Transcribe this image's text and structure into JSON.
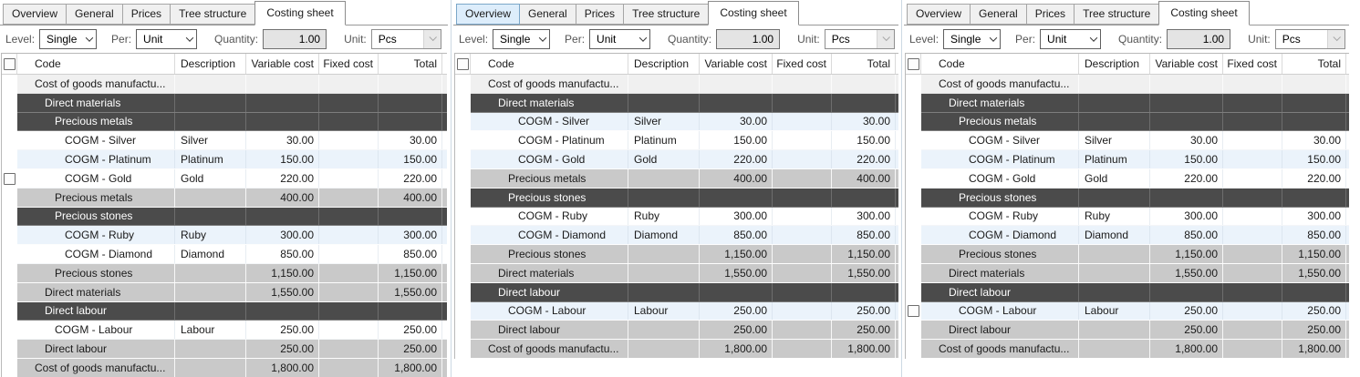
{
  "tabs": [
    "Overview",
    "General",
    "Prices",
    "Tree structure",
    "Costing sheet"
  ],
  "active_tab": "Costing sheet",
  "toolbar": {
    "level_label": "Level:",
    "level_value": "Single",
    "per_label": "Per:",
    "per_value": "Unit",
    "quantity_label": "Quantity:",
    "quantity_value": "1.00",
    "unit_label": "Unit:",
    "unit_value": "Pcs"
  },
  "table": {
    "columns": [
      "Code",
      "Description",
      "Variable cost",
      "Fixed cost",
      "Total"
    ]
  },
  "colors": {
    "group_row_bg": "#4b4b4b",
    "subtotal_row_bg": "#c9c9c9",
    "alt_row_bg": "#ebf3fb",
    "root_row_bg": "#f0f0f0",
    "hover_tab_bg": "#ddedfb"
  },
  "panels": [
    {
      "hover_tab": "",
      "rows": [
        {
          "type": "root",
          "code": "Cost of goods manufactu...",
          "desc": "",
          "variable": "",
          "fixed": "",
          "total": "",
          "indent": 0,
          "alt": false,
          "checkbox": false
        },
        {
          "type": "group",
          "code": "Direct materials",
          "desc": "",
          "variable": "",
          "fixed": "",
          "total": "",
          "indent": 1,
          "alt": false,
          "checkbox": false
        },
        {
          "type": "group",
          "code": "Precious metals",
          "desc": "",
          "variable": "",
          "fixed": "",
          "total": "",
          "indent": 2,
          "alt": false,
          "checkbox": false
        },
        {
          "type": "item",
          "code": "COGM - Silver",
          "desc": "Silver",
          "variable": "30.00",
          "fixed": "",
          "total": "30.00",
          "indent": 3,
          "alt": false,
          "checkbox": false
        },
        {
          "type": "item",
          "code": "COGM - Platinum",
          "desc": "Platinum",
          "variable": "150.00",
          "fixed": "",
          "total": "150.00",
          "indent": 3,
          "alt": true,
          "checkbox": false
        },
        {
          "type": "item",
          "code": "COGM - Gold",
          "desc": "Gold",
          "variable": "220.00",
          "fixed": "",
          "total": "220.00",
          "indent": 3,
          "alt": false,
          "checkbox": true
        },
        {
          "type": "sub",
          "code": "Precious metals",
          "desc": "",
          "variable": "400.00",
          "fixed": "",
          "total": "400.00",
          "indent": 2,
          "alt": false,
          "checkbox": false
        },
        {
          "type": "group",
          "code": "Precious stones",
          "desc": "",
          "variable": "",
          "fixed": "",
          "total": "",
          "indent": 2,
          "alt": false,
          "checkbox": false
        },
        {
          "type": "item",
          "code": "COGM - Ruby",
          "desc": "Ruby",
          "variable": "300.00",
          "fixed": "",
          "total": "300.00",
          "indent": 3,
          "alt": true,
          "checkbox": false
        },
        {
          "type": "item",
          "code": "COGM - Diamond",
          "desc": "Diamond",
          "variable": "850.00",
          "fixed": "",
          "total": "850.00",
          "indent": 3,
          "alt": false,
          "checkbox": false
        },
        {
          "type": "sub",
          "code": "Precious stones",
          "desc": "",
          "variable": "1,150.00",
          "fixed": "",
          "total": "1,150.00",
          "indent": 2,
          "alt": false,
          "checkbox": false
        },
        {
          "type": "sub",
          "code": "Direct materials",
          "desc": "",
          "variable": "1,550.00",
          "fixed": "",
          "total": "1,550.00",
          "indent": 1,
          "alt": false,
          "checkbox": false
        },
        {
          "type": "group",
          "code": "Direct labour",
          "desc": "",
          "variable": "",
          "fixed": "",
          "total": "",
          "indent": 1,
          "alt": false,
          "checkbox": false
        },
        {
          "type": "item",
          "code": "COGM - Labour",
          "desc": "Labour",
          "variable": "250.00",
          "fixed": "",
          "total": "250.00",
          "indent": 2,
          "alt": false,
          "checkbox": false
        },
        {
          "type": "sub",
          "code": "Direct labour",
          "desc": "",
          "variable": "250.00",
          "fixed": "",
          "total": "250.00",
          "indent": 1,
          "alt": false,
          "checkbox": false
        },
        {
          "type": "sub",
          "code": "Cost of goods manufactu...",
          "desc": "",
          "variable": "1,800.00",
          "fixed": "",
          "total": "1,800.00",
          "indent": 0,
          "alt": false,
          "checkbox": false
        }
      ]
    },
    {
      "hover_tab": "Overview",
      "rows": [
        {
          "type": "root",
          "code": "Cost of goods manufactu...",
          "desc": "",
          "variable": "",
          "fixed": "",
          "total": "",
          "indent": 0,
          "alt": false,
          "checkbox": false
        },
        {
          "type": "group",
          "code": "Direct materials",
          "desc": "",
          "variable": "",
          "fixed": "",
          "total": "",
          "indent": 1,
          "alt": false,
          "checkbox": false
        },
        {
          "type": "item",
          "code": "COGM - Silver",
          "desc": "Silver",
          "variable": "30.00",
          "fixed": "",
          "total": "30.00",
          "indent": 3,
          "alt": true,
          "checkbox": false
        },
        {
          "type": "item",
          "code": "COGM - Platinum",
          "desc": "Platinum",
          "variable": "150.00",
          "fixed": "",
          "total": "150.00",
          "indent": 3,
          "alt": false,
          "checkbox": false
        },
        {
          "type": "item",
          "code": "COGM - Gold",
          "desc": "Gold",
          "variable": "220.00",
          "fixed": "",
          "total": "220.00",
          "indent": 3,
          "alt": true,
          "checkbox": false
        },
        {
          "type": "sub",
          "code": "Precious metals",
          "desc": "",
          "variable": "400.00",
          "fixed": "",
          "total": "400.00",
          "indent": 2,
          "alt": false,
          "checkbox": false
        },
        {
          "type": "group",
          "code": "Precious stones",
          "desc": "",
          "variable": "",
          "fixed": "",
          "total": "",
          "indent": 2,
          "alt": false,
          "checkbox": false
        },
        {
          "type": "item",
          "code": "COGM - Ruby",
          "desc": "Ruby",
          "variable": "300.00",
          "fixed": "",
          "total": "300.00",
          "indent": 3,
          "alt": false,
          "checkbox": false
        },
        {
          "type": "item",
          "code": "COGM - Diamond",
          "desc": "Diamond",
          "variable": "850.00",
          "fixed": "",
          "total": "850.00",
          "indent": 3,
          "alt": true,
          "checkbox": false
        },
        {
          "type": "sub",
          "code": "Precious stones",
          "desc": "",
          "variable": "1,150.00",
          "fixed": "",
          "total": "1,150.00",
          "indent": 2,
          "alt": false,
          "checkbox": false
        },
        {
          "type": "sub",
          "code": "Direct materials",
          "desc": "",
          "variable": "1,550.00",
          "fixed": "",
          "total": "1,550.00",
          "indent": 1,
          "alt": false,
          "checkbox": false
        },
        {
          "type": "group",
          "code": "Direct labour",
          "desc": "",
          "variable": "",
          "fixed": "",
          "total": "",
          "indent": 1,
          "alt": false,
          "checkbox": false
        },
        {
          "type": "item",
          "code": "COGM - Labour",
          "desc": "Labour",
          "variable": "250.00",
          "fixed": "",
          "total": "250.00",
          "indent": 2,
          "alt": true,
          "checkbox": false
        },
        {
          "type": "sub",
          "code": "Direct labour",
          "desc": "",
          "variable": "250.00",
          "fixed": "",
          "total": "250.00",
          "indent": 1,
          "alt": false,
          "checkbox": false
        },
        {
          "type": "sub",
          "code": "Cost of goods manufactu...",
          "desc": "",
          "variable": "1,800.00",
          "fixed": "",
          "total": "1,800.00",
          "indent": 0,
          "alt": false,
          "checkbox": false
        }
      ]
    },
    {
      "hover_tab": "",
      "rows": [
        {
          "type": "root",
          "code": "Cost of goods manufactu...",
          "desc": "",
          "variable": "",
          "fixed": "",
          "total": "",
          "indent": 0,
          "alt": false,
          "checkbox": false
        },
        {
          "type": "group",
          "code": "Direct materials",
          "desc": "",
          "variable": "",
          "fixed": "",
          "total": "",
          "indent": 1,
          "alt": false,
          "checkbox": false
        },
        {
          "type": "group",
          "code": "Precious metals",
          "desc": "",
          "variable": "",
          "fixed": "",
          "total": "",
          "indent": 2,
          "alt": false,
          "checkbox": false
        },
        {
          "type": "item",
          "code": "COGM - Silver",
          "desc": "Silver",
          "variable": "30.00",
          "fixed": "",
          "total": "30.00",
          "indent": 3,
          "alt": false,
          "checkbox": false
        },
        {
          "type": "item",
          "code": "COGM - Platinum",
          "desc": "Platinum",
          "variable": "150.00",
          "fixed": "",
          "total": "150.00",
          "indent": 3,
          "alt": true,
          "checkbox": false
        },
        {
          "type": "item",
          "code": "COGM - Gold",
          "desc": "Gold",
          "variable": "220.00",
          "fixed": "",
          "total": "220.00",
          "indent": 3,
          "alt": false,
          "checkbox": false
        },
        {
          "type": "group",
          "code": "Precious stones",
          "desc": "",
          "variable": "",
          "fixed": "",
          "total": "",
          "indent": 2,
          "alt": false,
          "checkbox": false
        },
        {
          "type": "item",
          "code": "COGM - Ruby",
          "desc": "Ruby",
          "variable": "300.00",
          "fixed": "",
          "total": "300.00",
          "indent": 3,
          "alt": false,
          "checkbox": false
        },
        {
          "type": "item",
          "code": "COGM - Diamond",
          "desc": "Diamond",
          "variable": "850.00",
          "fixed": "",
          "total": "850.00",
          "indent": 3,
          "alt": true,
          "checkbox": false
        },
        {
          "type": "sub",
          "code": "Precious stones",
          "desc": "",
          "variable": "1,150.00",
          "fixed": "",
          "total": "1,150.00",
          "indent": 2,
          "alt": false,
          "checkbox": false
        },
        {
          "type": "sub",
          "code": "Direct materials",
          "desc": "",
          "variable": "1,550.00",
          "fixed": "",
          "total": "1,550.00",
          "indent": 1,
          "alt": false,
          "checkbox": false
        },
        {
          "type": "group",
          "code": "Direct labour",
          "desc": "",
          "variable": "",
          "fixed": "",
          "total": "",
          "indent": 1,
          "alt": false,
          "checkbox": false
        },
        {
          "type": "item",
          "code": "COGM - Labour",
          "desc": "Labour",
          "variable": "250.00",
          "fixed": "",
          "total": "250.00",
          "indent": 2,
          "alt": true,
          "checkbox": true
        },
        {
          "type": "sub",
          "code": "Direct labour",
          "desc": "",
          "variable": "250.00",
          "fixed": "",
          "total": "250.00",
          "indent": 1,
          "alt": false,
          "checkbox": false
        },
        {
          "type": "sub",
          "code": "Cost of goods manufactu...",
          "desc": "",
          "variable": "1,800.00",
          "fixed": "",
          "total": "1,800.00",
          "indent": 0,
          "alt": false,
          "checkbox": false
        }
      ]
    }
  ]
}
